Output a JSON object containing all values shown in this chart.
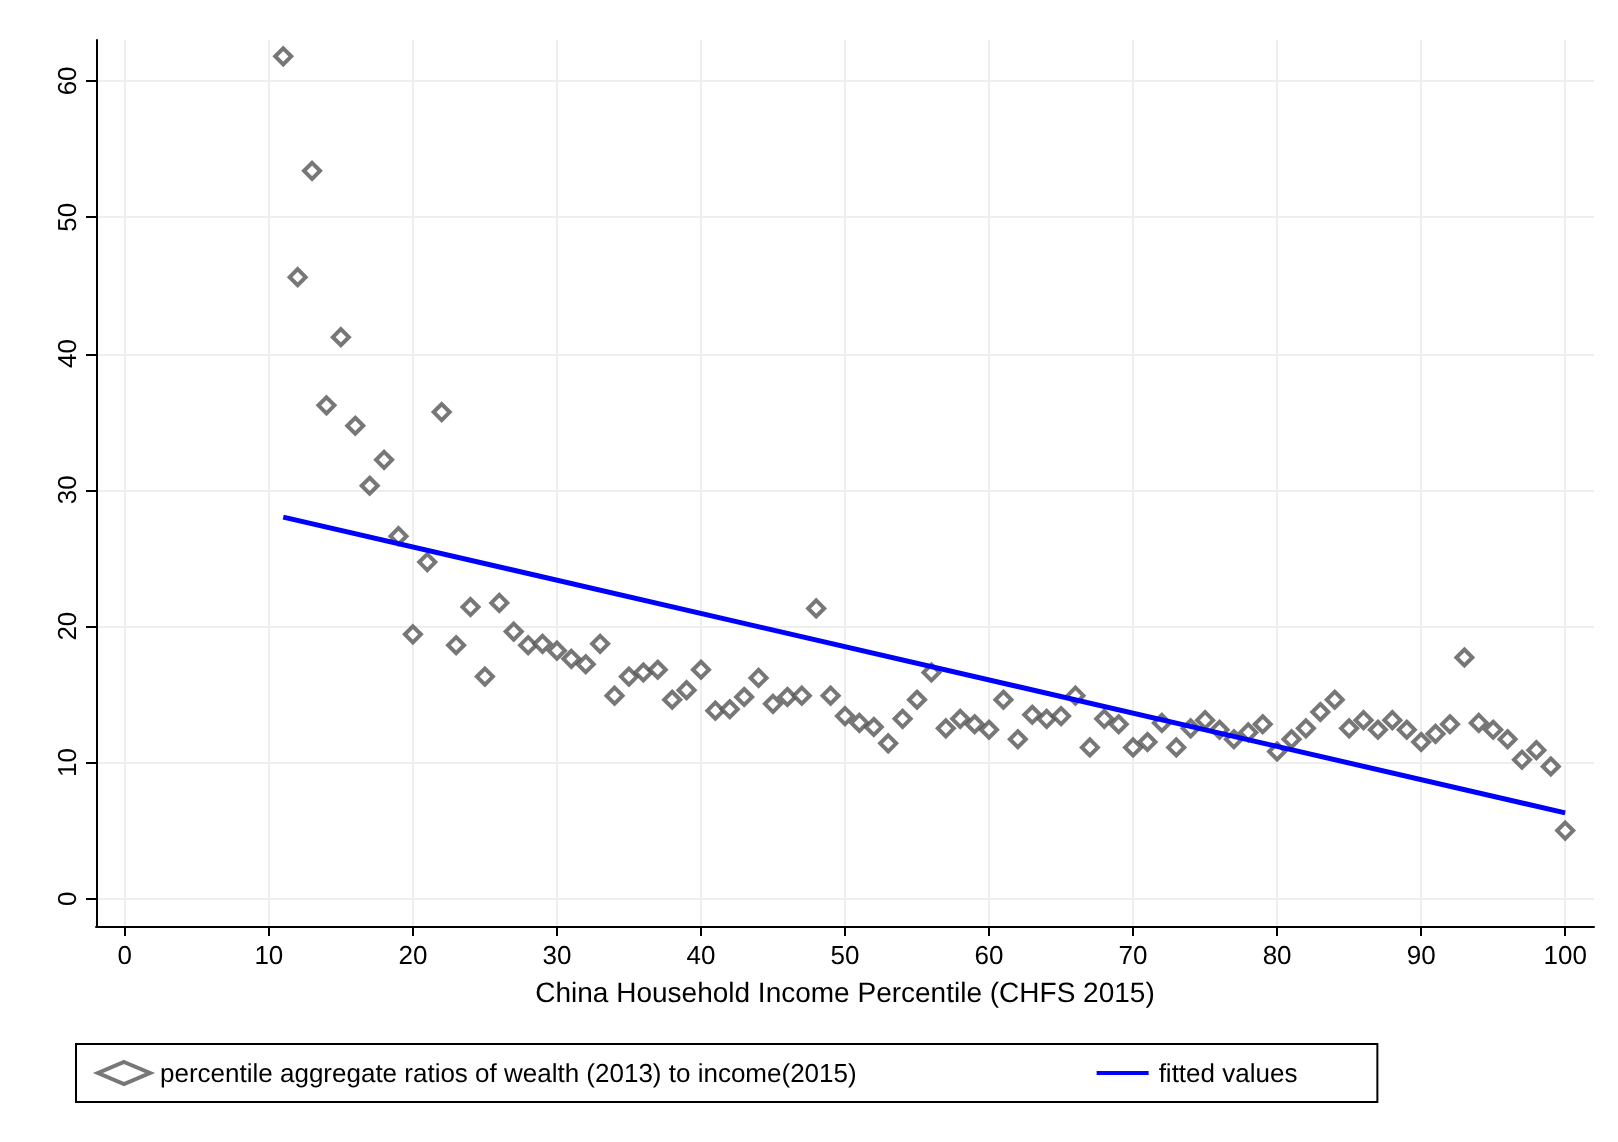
{
  "chart_data": {
    "type": "scatter",
    "xlabel": "China Household Income Percentile (CHFS 2015)",
    "xlim": [
      -2,
      102
    ],
    "xticks": [
      0,
      10,
      20,
      30,
      40,
      50,
      60,
      70,
      80,
      90,
      100
    ],
    "ylim": [
      -2,
      63
    ],
    "yticks": [
      0,
      10,
      20,
      30,
      40,
      50,
      60
    ],
    "grid": true,
    "legend": "bottom",
    "series": [
      {
        "name": "percentile aggregate ratios of wealth (2013) to income(2015)",
        "marker": "diamond",
        "color": "#555555",
        "x": [
          11,
          12,
          13,
          14,
          15,
          16,
          17,
          18,
          19,
          20,
          21,
          22,
          23,
          24,
          25,
          26,
          27,
          28,
          29,
          30,
          31,
          32,
          33,
          34,
          35,
          36,
          37,
          38,
          39,
          40,
          41,
          42,
          43,
          44,
          45,
          46,
          47,
          48,
          49,
          50,
          51,
          52,
          53,
          54,
          55,
          56,
          57,
          58,
          59,
          60,
          61,
          62,
          63,
          64,
          65,
          66,
          67,
          68,
          69,
          70,
          71,
          72,
          73,
          74,
          75,
          76,
          77,
          78,
          79,
          80,
          81,
          82,
          83,
          84,
          85,
          86,
          87,
          88,
          89,
          90,
          91,
          92,
          93,
          94,
          95,
          96,
          97,
          98,
          99,
          100
        ],
        "values": [
          61.8,
          45.6,
          53.4,
          36.2,
          41.2,
          34.7,
          30.3,
          32.2,
          26.6,
          19.4,
          24.7,
          35.7,
          18.6,
          21.4,
          16.3,
          21.7,
          19.6,
          18.6,
          18.7,
          18.2,
          17.6,
          17.2,
          18.7,
          14.9,
          16.3,
          16.6,
          16.8,
          14.6,
          15.3,
          16.8,
          13.8,
          13.9,
          14.8,
          16.2,
          14.3,
          14.8,
          14.9,
          21.3,
          14.9,
          13.4,
          12.9,
          12.6,
          11.4,
          13.2,
          14.6,
          16.6,
          12.5,
          13.2,
          12.8,
          12.4,
          14.6,
          11.7,
          13.5,
          13.2,
          13.4,
          14.9,
          11.1,
          13.2,
          12.8,
          11.1,
          11.5,
          12.9,
          11.1,
          12.5,
          13.1,
          12.4,
          11.7,
          12.2,
          12.8,
          10.8,
          11.7,
          12.5,
          13.7,
          14.6,
          12.5,
          13.1,
          12.4,
          13.1,
          12.4,
          11.5,
          12.1,
          12.8,
          17.7,
          12.9,
          12.4,
          11.7,
          10.2,
          10.9,
          9.7,
          5.0
        ]
      },
      {
        "name": "fitted values",
        "type": "line",
        "marker": "none",
        "line_style": "solid",
        "color": "#0000ff",
        "x": [
          11,
          100
        ],
        "values": [
          28.0,
          6.3
        ]
      }
    ]
  }
}
